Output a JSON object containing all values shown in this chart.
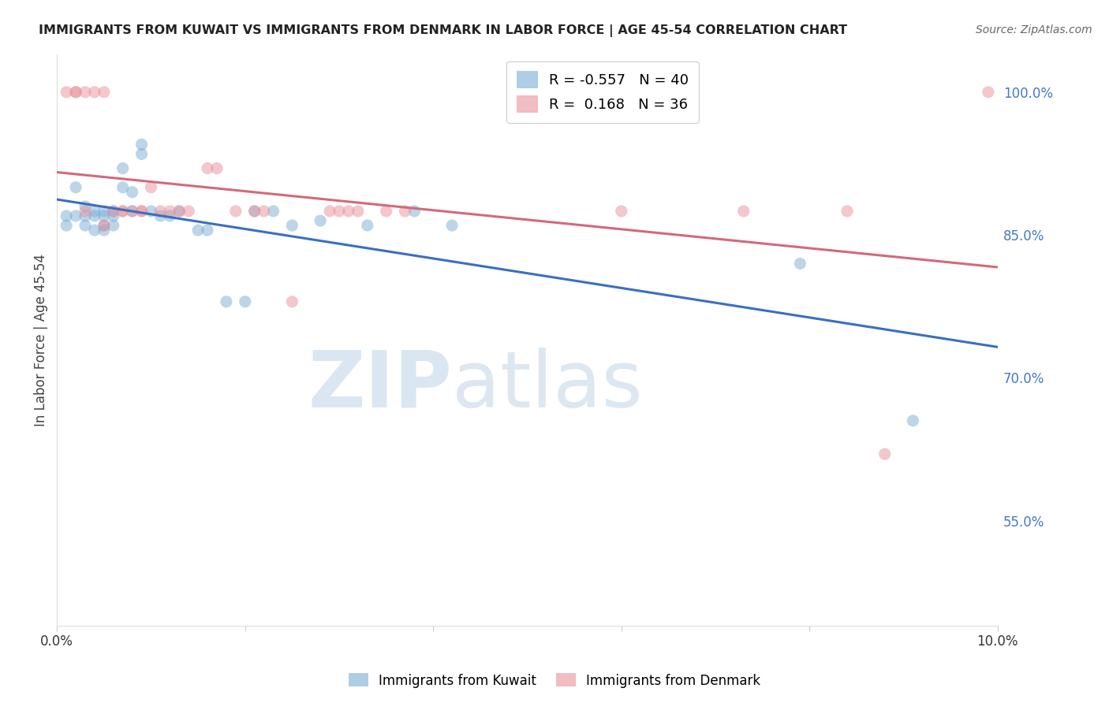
{
  "title": "IMMIGRANTS FROM KUWAIT VS IMMIGRANTS FROM DENMARK IN LABOR FORCE | AGE 45-54 CORRELATION CHART",
  "source": "Source: ZipAtlas.com",
  "ylabel": "In Labor Force | Age 45-54",
  "xlim": [
    0.0,
    0.1
  ],
  "ylim": [
    0.44,
    1.04
  ],
  "xticks": [
    0.0,
    0.02,
    0.04,
    0.06,
    0.08,
    0.1
  ],
  "xtick_labels": [
    "0.0%",
    "",
    "",
    "",
    "",
    "10.0%"
  ],
  "ytick_labels_right": [
    "100.0%",
    "85.0%",
    "70.0%",
    "55.0%"
  ],
  "yticks_right": [
    1.0,
    0.85,
    0.7,
    0.55
  ],
  "kuwait_R": -0.557,
  "kuwait_N": 40,
  "denmark_R": 0.168,
  "denmark_N": 36,
  "kuwait_color": "#7aadd4",
  "denmark_color": "#e8909a",
  "kuwait_line_color": "#3a6fbf",
  "denmark_line_color": "#d4697a",
  "kuwait_x": [
    0.001,
    0.001,
    0.002,
    0.002,
    0.003,
    0.003,
    0.003,
    0.004,
    0.004,
    0.004,
    0.005,
    0.005,
    0.005,
    0.005,
    0.006,
    0.006,
    0.006,
    0.007,
    0.007,
    0.008,
    0.008,
    0.009,
    0.009,
    0.01,
    0.011,
    0.012,
    0.013,
    0.015,
    0.016,
    0.018,
    0.02,
    0.021,
    0.023,
    0.025,
    0.028,
    0.033,
    0.038,
    0.042,
    0.079,
    0.091
  ],
  "kuwait_y": [
    0.87,
    0.86,
    0.9,
    0.87,
    0.88,
    0.87,
    0.86,
    0.875,
    0.87,
    0.855,
    0.875,
    0.87,
    0.86,
    0.855,
    0.875,
    0.87,
    0.86,
    0.92,
    0.9,
    0.895,
    0.875,
    0.945,
    0.935,
    0.875,
    0.87,
    0.87,
    0.875,
    0.855,
    0.855,
    0.78,
    0.78,
    0.875,
    0.875,
    0.86,
    0.865,
    0.86,
    0.875,
    0.86,
    0.82,
    0.655
  ],
  "denmark_x": [
    0.001,
    0.002,
    0.002,
    0.003,
    0.003,
    0.004,
    0.005,
    0.005,
    0.006,
    0.007,
    0.007,
    0.008,
    0.009,
    0.009,
    0.01,
    0.011,
    0.012,
    0.013,
    0.014,
    0.016,
    0.017,
    0.019,
    0.021,
    0.022,
    0.025,
    0.029,
    0.03,
    0.031,
    0.032,
    0.035,
    0.037,
    0.06,
    0.073,
    0.084,
    0.088,
    0.099
  ],
  "denmark_y": [
    1.0,
    1.0,
    1.0,
    1.0,
    0.875,
    1.0,
    1.0,
    0.86,
    0.875,
    0.875,
    0.875,
    0.875,
    0.875,
    0.875,
    0.9,
    0.875,
    0.875,
    0.875,
    0.875,
    0.92,
    0.92,
    0.875,
    0.875,
    0.875,
    0.78,
    0.875,
    0.875,
    0.875,
    0.875,
    0.875,
    0.875,
    0.875,
    0.875,
    0.875,
    0.62,
    1.0
  ]
}
